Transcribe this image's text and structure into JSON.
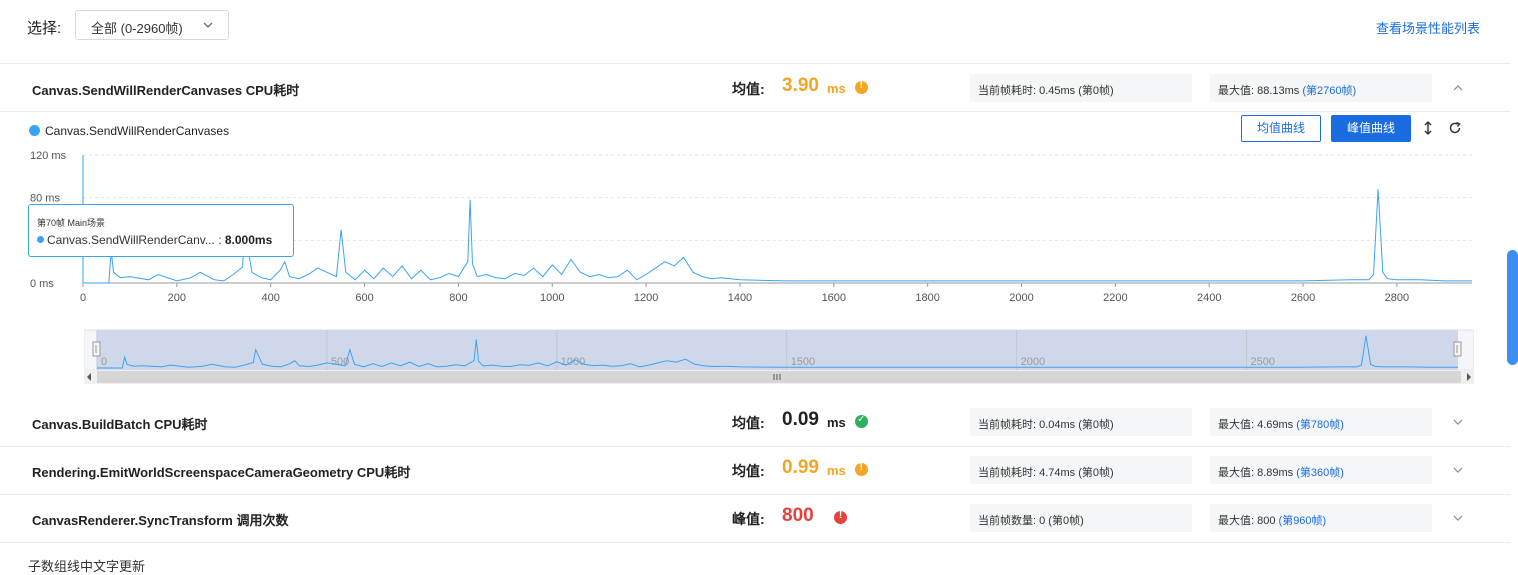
{
  "header": {
    "select_label": "选择:",
    "select_value": "全部 (0-2960帧)",
    "scene_perf_link": "查看场景性能列表"
  },
  "rows": [
    {
      "name": "Canvas.SendWillRenderCanvases CPU耗时",
      "avg_label": "均值:",
      "avg_value": "3.90",
      "unit": "ms",
      "status": "warning",
      "status_color": "#f5a524",
      "current": "当前帧耗时: 0.45ms (第0帧)",
      "max_text": "最大值: 88.13ms",
      "max_link": "(第2760帧)",
      "expanded": true
    },
    {
      "name": "Canvas.BuildBatch CPU耗时",
      "avg_label": "均值:",
      "avg_value": "0.09",
      "unit": "ms",
      "status": "ok",
      "status_color": "#2fae5f",
      "current": "当前帧耗时: 0.04ms (第0帧)",
      "max_text": "最大值: 4.69ms",
      "max_link": "(第780帧)",
      "expanded": false
    },
    {
      "name": "Rendering.EmitWorldScreenspaceCameraGeometry CPU耗时",
      "avg_label": "均值:",
      "avg_value": "0.99",
      "unit": "ms",
      "status": "warning",
      "status_color": "#f5a524",
      "current": "当前帧耗时: 4.74ms (第0帧)",
      "max_text": "最大值: 8.89ms",
      "max_link": "(第360帧)",
      "expanded": false
    },
    {
      "name": "CanvasRenderer.SyncTransform 调用次数",
      "avg_label": "峰值:",
      "avg_value": "800",
      "unit": "",
      "status": "error",
      "status_color": "#e8413a",
      "current": "当前帧数量: 0 (第0帧)",
      "max_text": "最大值: 800",
      "max_link": "(第960帧)",
      "expanded": false
    }
  ],
  "chart_controls": {
    "avg_curve_button": "均值曲线",
    "peak_curve_button": "峰值曲线"
  },
  "tooltip": {
    "title": "第70帧 Main场景",
    "series": "Canvas.SendWillRenderCanv...",
    "value": "8.000ms"
  },
  "bottom_text": "子数组线中文字更新",
  "chart_data": {
    "type": "line",
    "series": [
      {
        "name": "Canvas.SendWillRenderCanvases",
        "color": "#3aa4f4",
        "x": [
          0,
          40,
          55,
          60,
          65,
          80,
          100,
          140,
          160,
          200,
          230,
          250,
          280,
          300,
          320,
          340,
          345,
          360,
          380,
          400,
          420,
          430,
          440,
          460,
          480,
          500,
          520,
          540,
          550,
          560,
          580,
          600,
          620,
          640,
          660,
          680,
          700,
          720,
          740,
          760,
          780,
          800,
          820,
          825,
          830,
          840,
          860,
          880,
          900,
          920,
          940,
          960,
          980,
          1000,
          1020,
          1040,
          1060,
          1080,
          1100,
          1120,
          1140,
          1160,
          1180,
          1200,
          1220,
          1240,
          1260,
          1280,
          1300,
          1320,
          1340,
          1360,
          1400,
          1500,
          1600,
          1800,
          2000,
          2200,
          2400,
          2600,
          2700,
          2740,
          2750,
          2760,
          2770,
          2780,
          2800,
          2850,
          2900,
          2960
        ],
        "values": [
          0,
          0,
          0,
          30,
          10,
          5,
          6,
          3,
          8,
          2,
          5,
          10,
          3,
          2,
          8,
          15,
          50,
          10,
          5,
          3,
          12,
          20,
          6,
          4,
          8,
          14,
          10,
          6,
          50,
          10,
          3,
          12,
          4,
          14,
          6,
          16,
          4,
          12,
          3,
          5,
          9,
          6,
          20,
          78,
          18,
          6,
          8,
          5,
          4,
          9,
          7,
          14,
          6,
          17,
          8,
          22,
          10,
          6,
          8,
          5,
          6,
          12,
          3,
          8,
          14,
          20,
          16,
          24,
          10,
          6,
          4,
          5,
          3,
          2,
          2,
          2,
          2,
          2,
          2,
          2,
          3,
          3,
          8,
          88,
          10,
          4,
          3,
          3,
          2,
          2
        ]
      }
    ],
    "xlim": [
      0,
      2960
    ],
    "ylim": [
      0,
      120
    ],
    "x_ticks": [
      "0",
      "200",
      "400",
      "600",
      "800",
      "1000",
      "1200",
      "1400",
      "1600",
      "1800",
      "2000",
      "2200",
      "2400",
      "2600",
      "2800"
    ],
    "y_ticks": [
      "0 ms",
      "40 ms",
      "80 ms",
      "120 ms"
    ],
    "grid": true,
    "navigator_ticks": [
      "0",
      "500",
      "1000",
      "1500",
      "2000",
      "2500"
    ]
  }
}
